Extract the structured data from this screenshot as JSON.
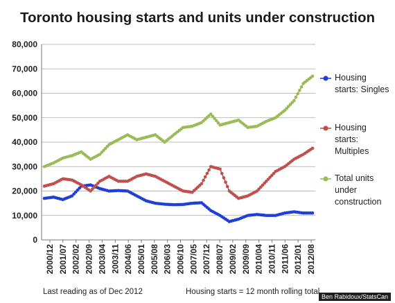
{
  "chart_data": {
    "type": "line",
    "title": "Toronto housing starts and units under construction",
    "xlabel": "",
    "ylabel": "",
    "ylim": [
      0,
      80000
    ],
    "y_ticks": [
      "0",
      "10,000",
      "20,000",
      "30,000",
      "40,000",
      "50,000",
      "60,000",
      "70,000",
      "80,000"
    ],
    "x_ticks": [
      "2000/12",
      "2001/07",
      "2002/02",
      "2002/09",
      "2003/04",
      "2003/11",
      "2004/06",
      "2005/01",
      "2005/08",
      "2006/03",
      "2006/10",
      "2007/05",
      "2007/12",
      "2008/07",
      "2009/02",
      "2009/09",
      "2010/04",
      "2010/11",
      "2011/06",
      "2012/01",
      "2012/08"
    ],
    "grid": "horizontal",
    "legend_position": "right",
    "series": [
      {
        "name": "Housing starts: Singles",
        "color": "#1f3fd6",
        "marker": "circle",
        "values": [
          17000,
          17500,
          16500,
          18000,
          22000,
          22500,
          21000,
          20000,
          20200,
          20000,
          18000,
          16000,
          15000,
          14600,
          14400,
          14500,
          15000,
          15200,
          12000,
          10000,
          7500,
          8500,
          10000,
          10400,
          10000,
          10000,
          11000,
          11500,
          11000,
          11000
        ]
      },
      {
        "name": "Housing starts: Multiples",
        "color": "#c0504d",
        "marker": "circle",
        "values": [
          22000,
          23000,
          25000,
          24500,
          22500,
          20000,
          24000,
          26000,
          24000,
          24000,
          26000,
          27000,
          26000,
          24000,
          22000,
          20000,
          19500,
          23000,
          30000,
          29000,
          20000,
          17000,
          18000,
          20000,
          24000,
          28000,
          30000,
          33000,
          35000,
          37500
        ]
      },
      {
        "name": "Total units under construction",
        "color": "#9bbb59",
        "marker": "circle",
        "values": [
          30000,
          31500,
          33500,
          34500,
          36000,
          33000,
          35000,
          39000,
          41000,
          43000,
          41000,
          42000,
          43000,
          40000,
          43000,
          46000,
          46500,
          48000,
          51500,
          47000,
          48000,
          49000,
          46000,
          46500,
          48500,
          50000,
          53000,
          57000,
          64000,
          67000
        ]
      }
    ]
  },
  "notes": {
    "left": "Last reading as of Dec 2012",
    "right": "Housing starts = 12 month rolling total"
  },
  "credit": "Ben Rabidoux/StatsCan"
}
